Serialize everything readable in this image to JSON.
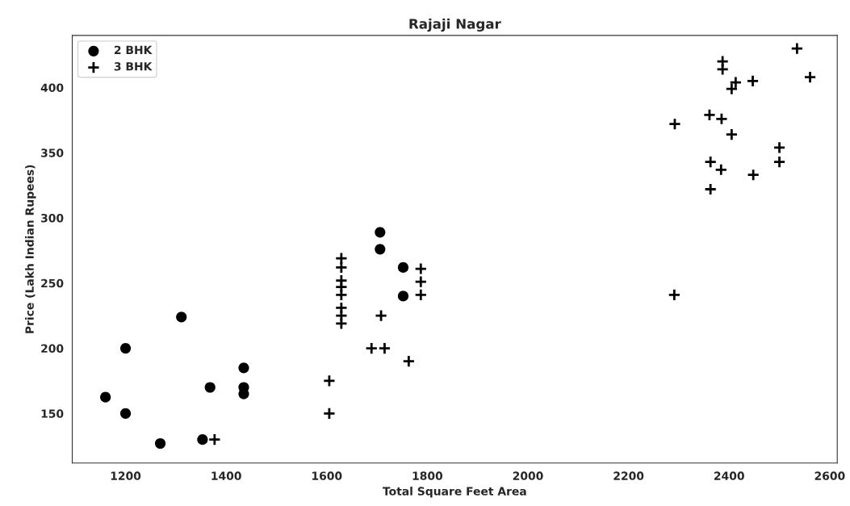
{
  "chart_data": {
    "type": "scatter",
    "title": "Rajaji Nagar",
    "xlabel": "Total Square Feet Area",
    "ylabel": "Price (Lakh Indian Rupees)",
    "xlim": [
      1094,
      2615
    ],
    "xticks": [
      1200,
      1400,
      1600,
      1800,
      2000,
      2200,
      2400,
      2600
    ],
    "ylim": [
      112,
      440
    ],
    "yticks": [
      150,
      200,
      250,
      300,
      350,
      400
    ],
    "legend": "top left",
    "grid": false,
    "series": [
      {
        "name": "2 BHK",
        "color": "#000000",
        "marker": "circle",
        "x": [
          1160,
          1200,
          1200,
          1269,
          1311,
          1353,
          1368,
          1435,
          1435,
          1435,
          1706,
          1706,
          1752,
          1752
        ],
        "values": [
          162.5,
          200,
          150,
          127,
          224,
          130,
          170,
          185,
          170,
          165,
          289,
          276,
          262,
          240
        ]
      },
      {
        "name": "3 BHK",
        "color": "#000000",
        "marker": "cross",
        "x": [
          1377,
          1605,
          1605,
          1629,
          1629,
          1629,
          1629,
          1629,
          1629,
          1629,
          1629,
          1708,
          1689,
          1715,
          1763,
          1787,
          1787,
          1787,
          2291,
          2535,
          2387,
          2387,
          2413,
          2405,
          2447,
          2561,
          2361,
          2385,
          2292,
          2405,
          2500,
          2500,
          2363,
          2384,
          2448,
          2363
        ],
        "values": [
          130,
          175,
          150,
          269,
          262,
          252,
          247,
          241,
          231,
          225,
          219,
          225,
          200,
          200,
          190,
          261,
          251,
          241,
          241,
          430,
          420,
          414,
          404,
          399,
          405,
          408,
          379,
          376,
          372,
          364,
          354,
          343,
          343,
          337,
          333,
          322
        ]
      }
    ]
  }
}
